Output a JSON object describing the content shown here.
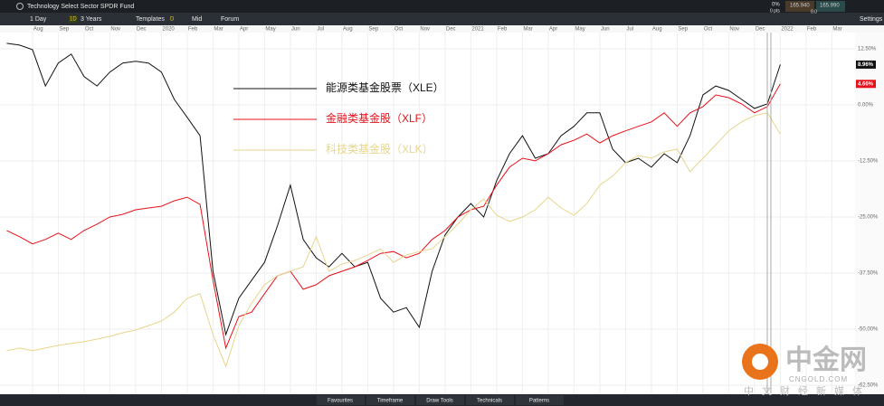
{
  "ui": {
    "title": "Technology Select Sector SPDR Fund",
    "interval": "1 Day",
    "range_badge": "1D",
    "range": "3 Years",
    "templates": "Templates",
    "price_badge": "D",
    "price_type": "Mid",
    "forum": "Forum",
    "settings": "Settings",
    "change_pct": "0%",
    "change_pts": "0 pts",
    "bid": "165.940",
    "ask": "165.990",
    "spread": "0.0",
    "bottom_tabs": [
      "Favourites",
      "Timeframe",
      "Draw Tools",
      "Technicals",
      "Patterns"
    ],
    "watermark": {
      "logo": "中金网",
      "site": "CNGOLD.COM",
      "slogan": "中文财经新媒体"
    }
  },
  "chart_data": {
    "type": "line",
    "x": [
      -1,
      -0.5,
      0,
      0.5,
      1,
      1.5,
      2,
      2.5,
      3,
      3.5,
      4,
      4.5,
      5,
      5.5,
      6,
      6.5,
      7,
      7.5,
      8,
      8.5,
      9,
      9.5,
      10,
      10.5,
      11,
      11.5,
      12,
      12.5,
      13,
      13.5,
      14,
      14.5,
      15,
      15.5,
      16,
      16.5,
      17,
      17.5,
      18,
      18.5,
      19,
      19.5,
      20,
      20.5,
      21,
      21.5,
      22,
      22.5,
      23,
      23.5,
      24,
      24.5,
      25,
      25.5,
      26,
      26.5,
      27,
      27.5,
      28,
      28.5,
      29
    ],
    "xlim": [
      -1.26,
      31.9
    ],
    "xticks": [
      {
        "value": 0,
        "label": "Aug"
      },
      {
        "value": 1,
        "label": "Sep"
      },
      {
        "value": 2,
        "label": "Oct"
      },
      {
        "value": 3,
        "label": "Nov"
      },
      {
        "value": 4,
        "label": "Dec"
      },
      {
        "value": 5,
        "label": "2020"
      },
      {
        "value": 6,
        "label": "Feb"
      },
      {
        "value": 7,
        "label": "Mar"
      },
      {
        "value": 8,
        "label": "Apr"
      },
      {
        "value": 9,
        "label": "May"
      },
      {
        "value": 10,
        "label": "Jun"
      },
      {
        "value": 11,
        "label": "Jul"
      },
      {
        "value": 12,
        "label": "Aug"
      },
      {
        "value": 13,
        "label": "Sep"
      },
      {
        "value": 14,
        "label": "Oct"
      },
      {
        "value": 15,
        "label": "Nov"
      },
      {
        "value": 16,
        "label": "Dec"
      },
      {
        "value": 17,
        "label": "2021"
      },
      {
        "value": 18,
        "label": "Feb"
      },
      {
        "value": 19,
        "label": "Mar"
      },
      {
        "value": 20,
        "label": "Apr"
      },
      {
        "value": 21,
        "label": "May"
      },
      {
        "value": 22,
        "label": "Jun"
      },
      {
        "value": 23,
        "label": "Jul"
      },
      {
        "value": 24,
        "label": "Aug"
      },
      {
        "value": 25,
        "label": "Sep"
      },
      {
        "value": 26,
        "label": "Oct"
      },
      {
        "value": 27,
        "label": "Nov"
      },
      {
        "value": 28,
        "label": "Dec"
      },
      {
        "value": 29,
        "label": "2022"
      },
      {
        "value": 30,
        "label": "Feb"
      },
      {
        "value": 31,
        "label": "Mar"
      }
    ],
    "ylim": [
      -64.3,
      16.1
    ],
    "yticks": [
      {
        "value": 12.5,
        "label": "12.50%"
      },
      {
        "value": 0,
        "label": "0.00%"
      },
      {
        "value": -12.5,
        "label": "-12.50%"
      },
      {
        "value": -25,
        "label": "-25.00%"
      },
      {
        "value": -37.5,
        "label": "-37.50%"
      },
      {
        "value": -50,
        "label": "-50.00%"
      },
      {
        "value": -62.5,
        "label": "-62.50%"
      }
    ],
    "grid": true,
    "series": [
      {
        "name": "能源类基金股票（XLE）",
        "color": "#111111",
        "end_label": "8.96%",
        "values": [
          13.7,
          13.3,
          12.3,
          4.2,
          9.3,
          11.3,
          6.3,
          4.2,
          7.3,
          9.3,
          9.7,
          9.3,
          7.3,
          1.2,
          -2.8,
          -6.9,
          -37.1,
          -51.2,
          -43.1,
          -39.1,
          -35.1,
          -27.0,
          -17.9,
          -30.0,
          -34.1,
          -36.1,
          -33.1,
          -36.1,
          -35.1,
          -43.1,
          -46.2,
          -45.2,
          -49.6,
          -37.1,
          -29.0,
          -25.0,
          -22.0,
          -25.0,
          -16.9,
          -10.9,
          -6.9,
          -11.9,
          -10.9,
          -6.9,
          -4.8,
          -1.8,
          -1.8,
          -9.9,
          -12.9,
          -11.9,
          -13.9,
          -10.9,
          -12.9,
          -6.9,
          2.2,
          4.2,
          3.2,
          1.2,
          -0.8,
          0.2,
          8.96
        ]
      },
      {
        "name": "金融类基金股（XLF）",
        "color": "#e8101a",
        "end_label": "4.66%",
        "values": [
          -28.0,
          -29.4,
          -31.0,
          -30.0,
          -28.6,
          -30.0,
          -28.0,
          -26.6,
          -25.0,
          -24.4,
          -23.4,
          -23.0,
          -22.6,
          -21.4,
          -20.6,
          -22.2,
          -39.1,
          -54.2,
          -47.2,
          -46.2,
          -42.1,
          -38.1,
          -37.1,
          -41.1,
          -40.1,
          -38.1,
          -37.1,
          -36.1,
          -34.7,
          -33.1,
          -32.7,
          -34.1,
          -33.1,
          -30.0,
          -28.0,
          -25.0,
          -23.4,
          -22.6,
          -17.9,
          -13.9,
          -11.9,
          -12.5,
          -10.9,
          -8.9,
          -7.9,
          -6.5,
          -8.5,
          -6.9,
          -5.8,
          -4.8,
          -3.8,
          -1.8,
          -4.8,
          -1.8,
          -0.4,
          2.2,
          1.6,
          0.2,
          -1.8,
          -0.4,
          4.66
        ]
      },
      {
        "name": "科技类基金股（XLK）",
        "color": "#e6d68c",
        "values": [
          -54.8,
          -54.2,
          -54.8,
          -54.2,
          -53.6,
          -53.2,
          -52.8,
          -52.2,
          -51.6,
          -50.8,
          -50.2,
          -49.2,
          -48.2,
          -46.2,
          -43.1,
          -42.1,
          -51.2,
          -58.3,
          -49.2,
          -44.2,
          -40.1,
          -38.1,
          -37.1,
          -36.1,
          -29.4,
          -37.1,
          -35.5,
          -34.7,
          -33.5,
          -32.1,
          -35.1,
          -33.5,
          -32.7,
          -32.1,
          -29.4,
          -26.6,
          -23.4,
          -21.0,
          -24.6,
          -26.0,
          -25.0,
          -23.4,
          -20.6,
          -23.0,
          -24.6,
          -22.0,
          -17.9,
          -15.9,
          -12.9,
          -11.3,
          -11.9,
          -10.5,
          -9.9,
          -14.9,
          -11.9,
          -8.9,
          -5.8,
          -3.8,
          -2.4,
          -1.8,
          -6.5
        ]
      }
    ]
  }
}
